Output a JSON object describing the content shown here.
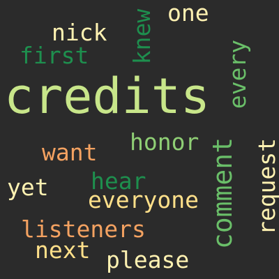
{
  "cloud": {
    "background": "#2b2b2b",
    "words": [
      {
        "id": "credits",
        "text": "credits",
        "color": "#c8e68a",
        "vertical": false
      },
      {
        "id": "nick",
        "text": "nick",
        "color": "#fff2b2",
        "vertical": false
      },
      {
        "id": "first",
        "text": "first",
        "color": "#1e8f4e",
        "vertical": false
      },
      {
        "id": "one",
        "text": "one",
        "color": "#fff2b2",
        "vertical": false
      },
      {
        "id": "knew",
        "text": "knew",
        "color": "#1e8f4e",
        "vertical": true
      },
      {
        "id": "every",
        "text": "every",
        "color": "#6abf69",
        "vertical": true
      },
      {
        "id": "honor",
        "text": "honor",
        "color": "#8fcf75",
        "vertical": false
      },
      {
        "id": "comment",
        "text": "comment",
        "color": "#6abf69",
        "vertical": true
      },
      {
        "id": "request",
        "text": "request",
        "color": "#fff2b2",
        "vertical": true
      },
      {
        "id": "want",
        "text": "want",
        "color": "#f4a261",
        "vertical": false
      },
      {
        "id": "yet",
        "text": "yet",
        "color": "#fff2b2",
        "vertical": false
      },
      {
        "id": "hear",
        "text": "hear",
        "color": "#1e8f4e",
        "vertical": false
      },
      {
        "id": "everyone",
        "text": "everyone",
        "color": "#ffe08a",
        "vertical": false
      },
      {
        "id": "listeners",
        "text": "listeners",
        "color": "#f4a261",
        "vertical": false
      },
      {
        "id": "next",
        "text": "next",
        "color": "#ffe08a",
        "vertical": false
      },
      {
        "id": "please",
        "text": "please",
        "color": "#fff2b2",
        "vertical": false
      }
    ]
  }
}
